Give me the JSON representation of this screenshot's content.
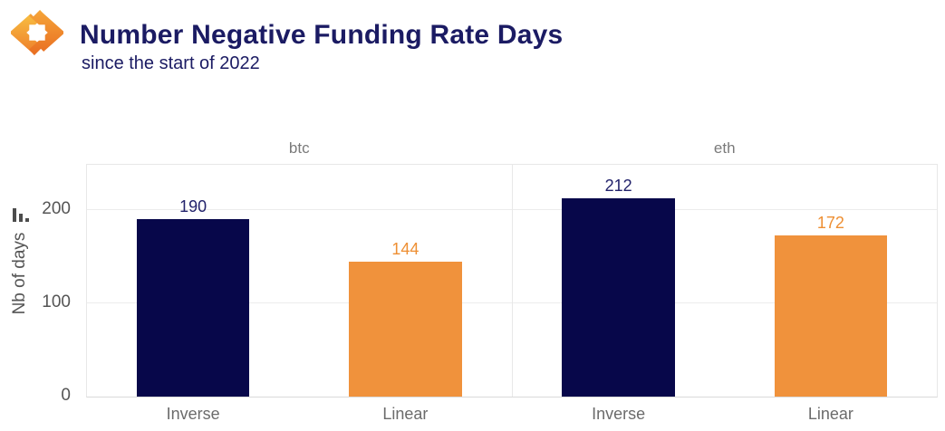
{
  "header": {
    "title": "Number Negative Funding Rate Days",
    "subtitle": "since the start of 2022",
    "title_color": "#1b1b63"
  },
  "icons": {
    "logo": "orange-diamond-chevrons-logo",
    "mini_chart": "mini-bar-chart-icon"
  },
  "chart_data": {
    "type": "bar",
    "facets": [
      {
        "label": "btc",
        "categories": [
          "Inverse",
          "Linear"
        ],
        "values": [
          190,
          144
        ]
      },
      {
        "label": "eth",
        "categories": [
          "Inverse",
          "Linear"
        ],
        "values": [
          212,
          172
        ]
      }
    ],
    "series_colors": {
      "Inverse": "#07074a",
      "Linear": "#f0923c"
    },
    "value_label_colors": {
      "Inverse": "#22226b",
      "Linear": "#ee8f33"
    },
    "ylabel": "Nb of days",
    "xlabel": "",
    "yticks": [
      0,
      100,
      200
    ],
    "ylim": [
      0,
      248
    ],
    "grid": true,
    "legend": "none",
    "facet_title_color": "#7a7a7a",
    "axis_text_color": "#555555"
  }
}
